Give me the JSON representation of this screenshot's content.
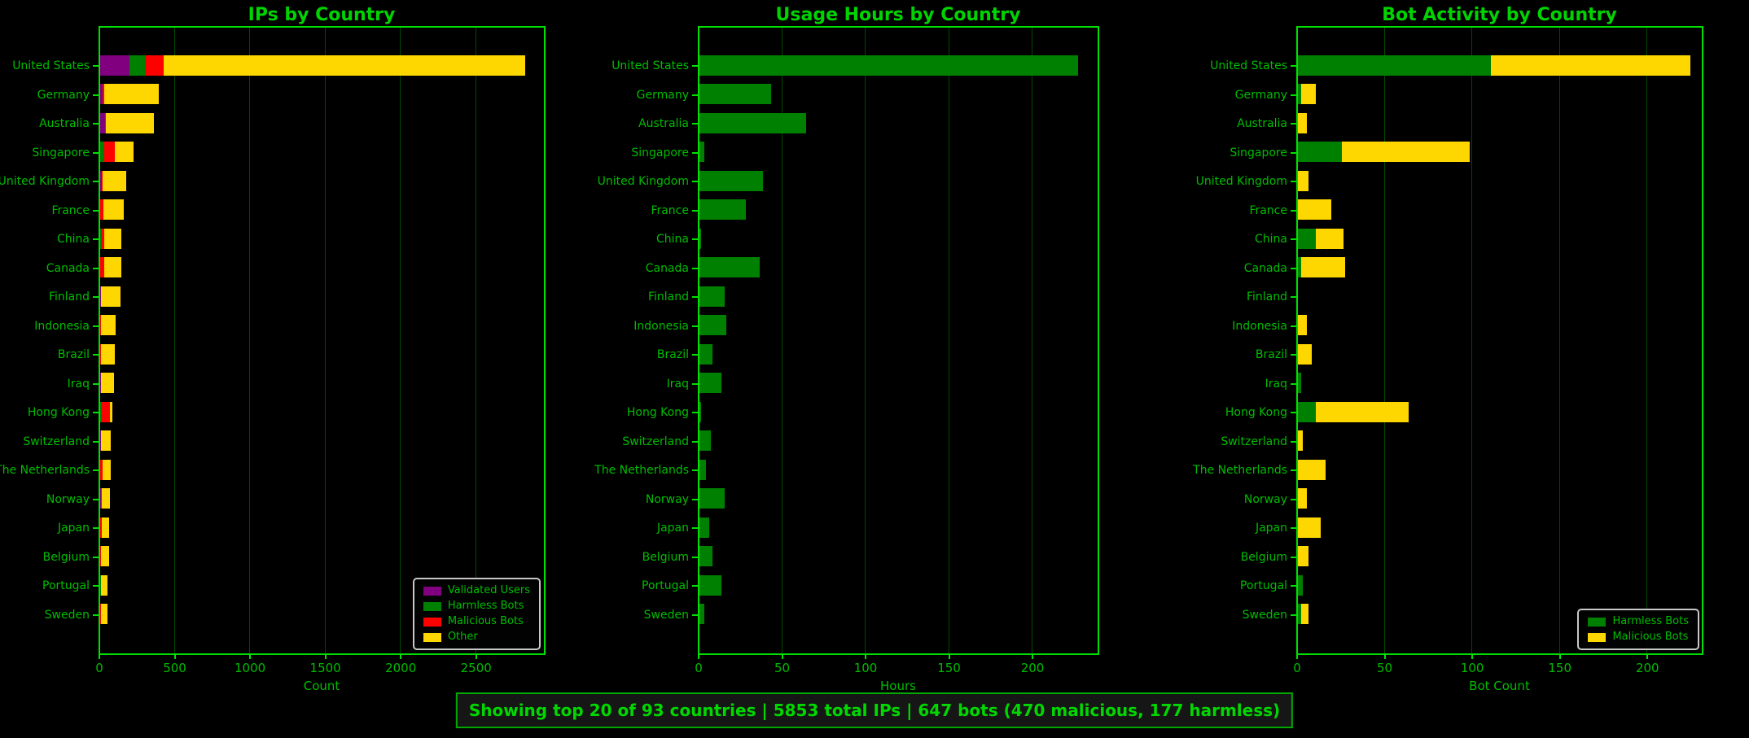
{
  "colors": {
    "background": "#000000",
    "title_text": "#00d400",
    "axis_text": "#00bc00",
    "spine": "#00e000",
    "grid": "#004a00",
    "validated_users": "#800080",
    "harmless_bots": "#008000",
    "malicious_bots_red": "#ff0000",
    "malicious_bots_gold": "#ffd700",
    "other": "#ffd700",
    "usage_hours": "#008000"
  },
  "countries": [
    "United States",
    "Germany",
    "Australia",
    "Singapore",
    "United Kingdom",
    "France",
    "China",
    "Canada",
    "Finland",
    "Indonesia",
    "Brazil",
    "Iraq",
    "Hong Kong",
    "Switzerland",
    "The Netherlands",
    "Norway",
    "Japan",
    "Belgium",
    "Portugal",
    "Sweden"
  ],
  "chart_data": [
    {
      "type": "bar",
      "orientation": "horizontal",
      "stacked": true,
      "title": "IPs by Country",
      "xlabel": "Count",
      "ylabel": "",
      "xlim": [
        0,
        2950
      ],
      "ticks": [
        0,
        500,
        1000,
        1500,
        2000,
        2500
      ],
      "grid": true,
      "legend_position": "lower right",
      "legend": [
        {
          "label": "Validated Users",
          "color": "#800080"
        },
        {
          "label": "Harmless Bots",
          "color": "#008000"
        },
        {
          "label": "Malicious Bots",
          "color": "#ff0000"
        },
        {
          "label": "Other",
          "color": "#ffd700"
        }
      ],
      "series": [
        {
          "name": "Validated Users",
          "color": "#800080",
          "values": [
            195,
            15,
            35,
            0,
            10,
            0,
            0,
            0,
            8,
            0,
            0,
            5,
            0,
            5,
            0,
            4,
            0,
            0,
            0,
            0
          ]
        },
        {
          "name": "Harmless Bots",
          "color": "#008000",
          "values": [
            110,
            2,
            0,
            25,
            0,
            0,
            10,
            2,
            0,
            0,
            0,
            2,
            10,
            0,
            0,
            0,
            0,
            0,
            3,
            2
          ]
        },
        {
          "name": "Malicious Bots",
          "color": "#ff0000",
          "values": [
            114,
            8,
            5,
            73,
            6,
            19,
            16,
            25,
            0,
            5,
            8,
            0,
            53,
            3,
            16,
            5,
            13,
            6,
            0,
            4
          ]
        },
        {
          "name": "Other",
          "color": "#ffd700",
          "values": [
            2401,
            365,
            315,
            122,
            159,
            135,
            117,
            112,
            129,
            95,
            92,
            85,
            19,
            62,
            52,
            55,
            49,
            52,
            48,
            41
          ]
        }
      ],
      "totals": [
        2820,
        390,
        355,
        220,
        175,
        154,
        143,
        139,
        137,
        100,
        100,
        92,
        82,
        70,
        68,
        64,
        62,
        58,
        51,
        47
      ]
    },
    {
      "type": "bar",
      "orientation": "horizontal",
      "stacked": false,
      "title": "Usage Hours by Country",
      "xlabel": "Hours",
      "ylabel": "",
      "xlim": [
        0,
        239
      ],
      "ticks": [
        0,
        50,
        100,
        150,
        200
      ],
      "grid": true,
      "legend": [],
      "series": [
        {
          "name": "Usage Hours",
          "color": "#008000",
          "values": [
            227,
            43,
            64,
            3,
            38,
            28,
            1,
            36,
            15,
            16,
            8,
            13,
            1,
            7,
            4,
            15,
            6,
            8,
            13,
            3
          ]
        }
      ]
    },
    {
      "type": "bar",
      "orientation": "horizontal",
      "stacked": true,
      "title": "Bot Activity by Country",
      "xlabel": "Bot Count",
      "ylabel": "",
      "xlim": [
        0,
        231
      ],
      "ticks": [
        0,
        50,
        100,
        150,
        200
      ],
      "grid": true,
      "legend_position": "lower right",
      "legend": [
        {
          "label": "Harmless Bots",
          "color": "#008000"
        },
        {
          "label": "Malicious Bots",
          "color": "#ffd700"
        }
      ],
      "series": [
        {
          "name": "Harmless Bots",
          "color": "#008000",
          "values": [
            110,
            2,
            0,
            25,
            0,
            0,
            10,
            2,
            0,
            0,
            0,
            2,
            10,
            0,
            0,
            0,
            0,
            0,
            3,
            2
          ]
        },
        {
          "name": "Malicious Bots",
          "color": "#ffd700",
          "values": [
            114,
            8,
            5,
            73,
            6,
            19,
            16,
            25,
            0,
            5,
            8,
            0,
            53,
            3,
            16,
            5,
            13,
            6,
            0,
            4
          ]
        }
      ]
    }
  ],
  "status_bar": {
    "text": "Showing top 20 of 93 countries | 5853 total IPs | 647 bots (470 malicious, 177 harmless)"
  }
}
